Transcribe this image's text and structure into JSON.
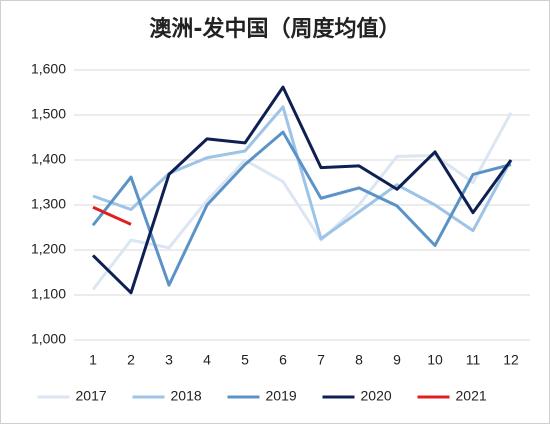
{
  "chart_data": {
    "type": "line",
    "title": "澳洲-发中国（周度均值）",
    "categories": [
      "1",
      "2",
      "3",
      "4",
      "5",
      "6",
      "7",
      "8",
      "9",
      "10",
      "11",
      "12"
    ],
    "series": [
      {
        "name": "2017",
        "color": "#dce6f2",
        "values": [
          1112,
          1222,
          1205,
          1310,
          1400,
          1352,
          1222,
          1300,
          1408,
          1410,
          1350,
          1505
        ]
      },
      {
        "name": "2018",
        "color": "#9dc3e6",
        "values": [
          1320,
          1290,
          1370,
          1405,
          1420,
          1518,
          1225,
          1285,
          1345,
          1300,
          1243,
          1400
        ]
      },
      {
        "name": "2019",
        "color": "#5b93c7",
        "values": [
          1255,
          1362,
          1122,
          1300,
          1390,
          1462,
          1315,
          1338,
          1298,
          1210,
          1368,
          1390
        ]
      },
      {
        "name": "2020",
        "color": "#0e2052",
        "values": [
          1188,
          1105,
          1368,
          1447,
          1438,
          1562,
          1383,
          1387,
          1335,
          1418,
          1283,
          1400
        ]
      },
      {
        "name": "2021",
        "color": "#e02020",
        "values": [
          1295,
          1257,
          null,
          null,
          null,
          null,
          null,
          null,
          null,
          null,
          null,
          null
        ]
      }
    ],
    "ylim": [
      1000,
      1600
    ],
    "yticks": [
      {
        "value": 1000,
        "label": "1,000"
      },
      {
        "value": 1100,
        "label": "1,100"
      },
      {
        "value": 1200,
        "label": "1,200"
      },
      {
        "value": 1300,
        "label": "1,300"
      },
      {
        "value": 1400,
        "label": "1,400"
      },
      {
        "value": 1500,
        "label": "1,500"
      },
      {
        "value": 1600,
        "label": "1,600"
      }
    ],
    "grid": true
  }
}
